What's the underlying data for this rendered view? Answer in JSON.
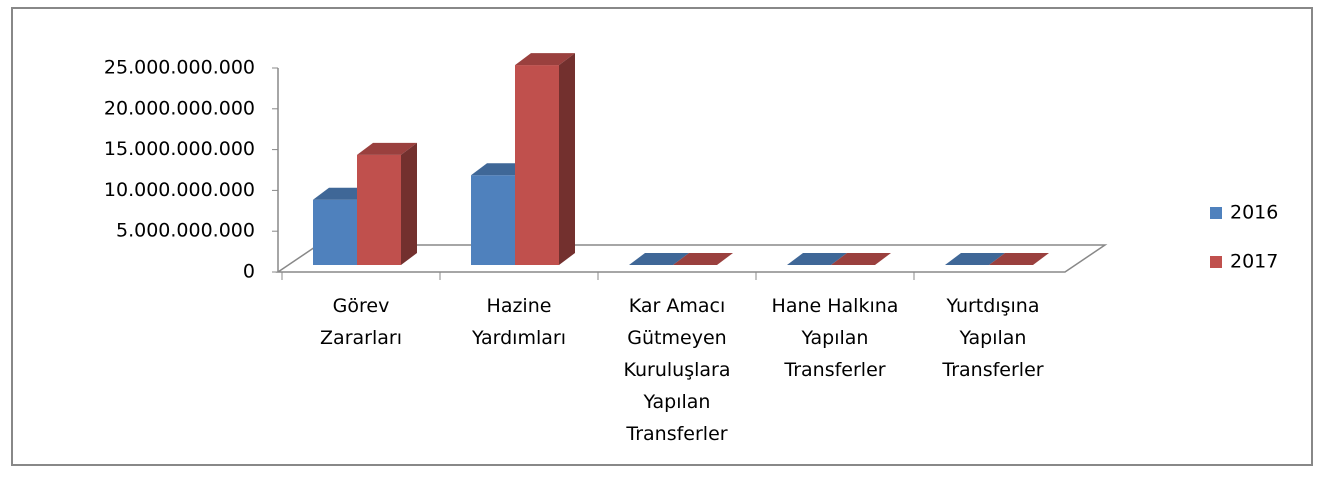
{
  "chart_data": {
    "type": "bar3d",
    "categories": [
      "Görev Zararları",
      "Hazine Yardımları",
      "Kar Amacı Gütmeyen Kuruluşlara Yapılan Transferler",
      "Hane Halkına Yapılan Transferler",
      "Yurtdışına Yapılan Transferler"
    ],
    "series": [
      {
        "name": "2016",
        "color": "#4f81bd",
        "values": [
          8000000000,
          11000000000,
          0,
          0,
          0
        ]
      },
      {
        "name": "2017",
        "color": "#c0504d",
        "values": [
          13500000000,
          24500000000,
          0,
          0,
          0
        ]
      }
    ],
    "ylim": [
      0,
      25000000000
    ],
    "yticks": [
      0,
      {
        "value": 5000000000,
        "label": "5.000.000.000"
      },
      {
        "value": 10000000000,
        "label": "10.000.000.000"
      },
      {
        "value": 15000000000,
        "label": "15.000.000.000"
      },
      {
        "value": 20000000000,
        "label": "20.000.000.000"
      },
      {
        "value": 25000000000,
        "label": "25.000.000.000"
      }
    ],
    "legend": "right"
  }
}
